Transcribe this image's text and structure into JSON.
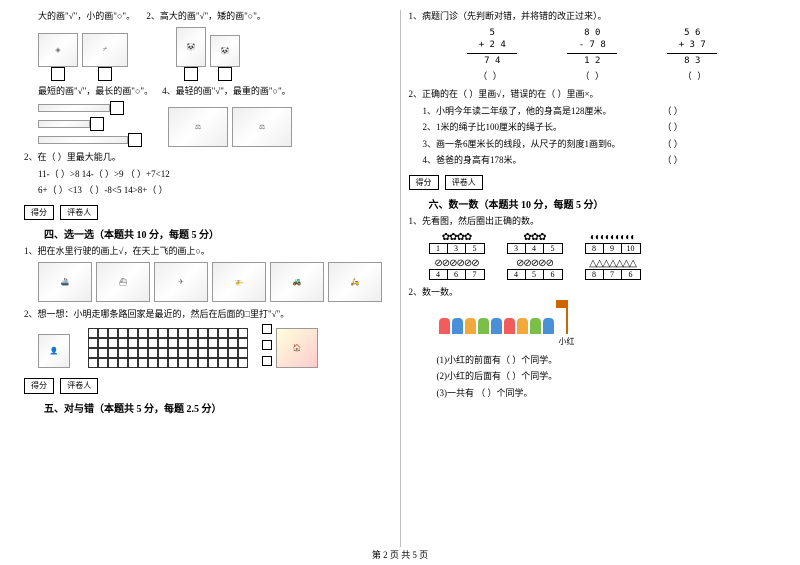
{
  "left": {
    "q1_header_a": "大的画\"√\"，小的画\"○\"。",
    "q1_header_b": "2、高大的画\"√\"，矮的画\"○\"。",
    "q1_header_c": "最短的画\"√\"，最长的画\"○\"。",
    "q1_header_d": "4、最轻的画\"√\"，最重的画\"○\"。",
    "q2_title": "2、在（  ）里最大能几。",
    "q2_items": [
      "11-（  ）>8          14-（  ）>9        （  ）+7<12",
      "6+（  ）<13          （  ）-8<5         14>8+（  ）"
    ],
    "score_a": "得分",
    "reviewer": "评卷人",
    "sec4": "四、选一选（本题共 10 分，每题 5 分）",
    "sec4_q1": "1、把在水里行驶的画上√，在天上飞的画上○。",
    "sec4_q2": "2、想一想：小明走哪条路回家是最近的，然后在后面的□里打\"√\"。",
    "sec5": "五、对与错（本题共 5 分，每题 2.5 分）",
    "vehicle_imgs": [
      "ship",
      "liner",
      "plane",
      "heli",
      "truck",
      "bike"
    ]
  },
  "right": {
    "q1_title": "1、病题门诊（先判断对错，并将错的改正过来）。",
    "math": [
      {
        "a": "5",
        "b": "+ 2 4",
        "c": "7 4"
      },
      {
        "a": "8 0",
        "b": "- 7 8",
        "c": "1 2"
      },
      {
        "a": "5 6",
        "b": "+ 3 7",
        "c": "8 3"
      }
    ],
    "q2_title": "2、正确的在（  ）里画√，错误的在（  ）里画×。",
    "q2_items": [
      "1、小明今年读二年级了，他的身高是128厘米。",
      "2、1米的绳子比100厘米的绳子长。",
      "3、画一条6厘米长的线段，从尺子的刻度1画到6。",
      "4、爸爸的身高有178米。"
    ],
    "score_a": "得分",
    "reviewer": "评卷人",
    "sec6": "六、数一数（本题共 10 分，每题 5 分）",
    "sec6_q1": "1、先看图，然后圈出正确的数。",
    "count_groups": [
      {
        "glyph": "✿",
        "count": 4,
        "opts": [
          "1",
          "3",
          "5"
        ]
      },
      {
        "glyph": "✿",
        "count": 3,
        "opts": [
          "3",
          "4",
          "5"
        ]
      },
      {
        "glyph": "◐",
        "count": 9,
        "opts": [
          "8",
          "9",
          "10"
        ]
      },
      {
        "glyph": "⊘",
        "count": 6,
        "opts": [
          "4",
          "6",
          "7"
        ]
      },
      {
        "glyph": "⊘",
        "count": 5,
        "opts": [
          "4",
          "5",
          "6"
        ]
      },
      {
        "glyph": "△",
        "count": 7,
        "opts": [
          "8",
          "7",
          "6"
        ]
      }
    ],
    "sec6_q2": "2、数一数。",
    "xiaohong": "小红",
    "q2_sub": [
      "(1)小红的前面有（  ）个同学。",
      "(2)小红的后面有（  ）个同学。",
      "(3)一共有      （  ）个同学。"
    ],
    "kid_colors": [
      "#f25c5c",
      "#4a90d9",
      "#f2a93c",
      "#7bbf4a",
      "#4a90d9",
      "#f25c5c",
      "#f2a93c",
      "#7bbf4a",
      "#4a90d9"
    ]
  },
  "footer": "第 2 页 共 5 页"
}
